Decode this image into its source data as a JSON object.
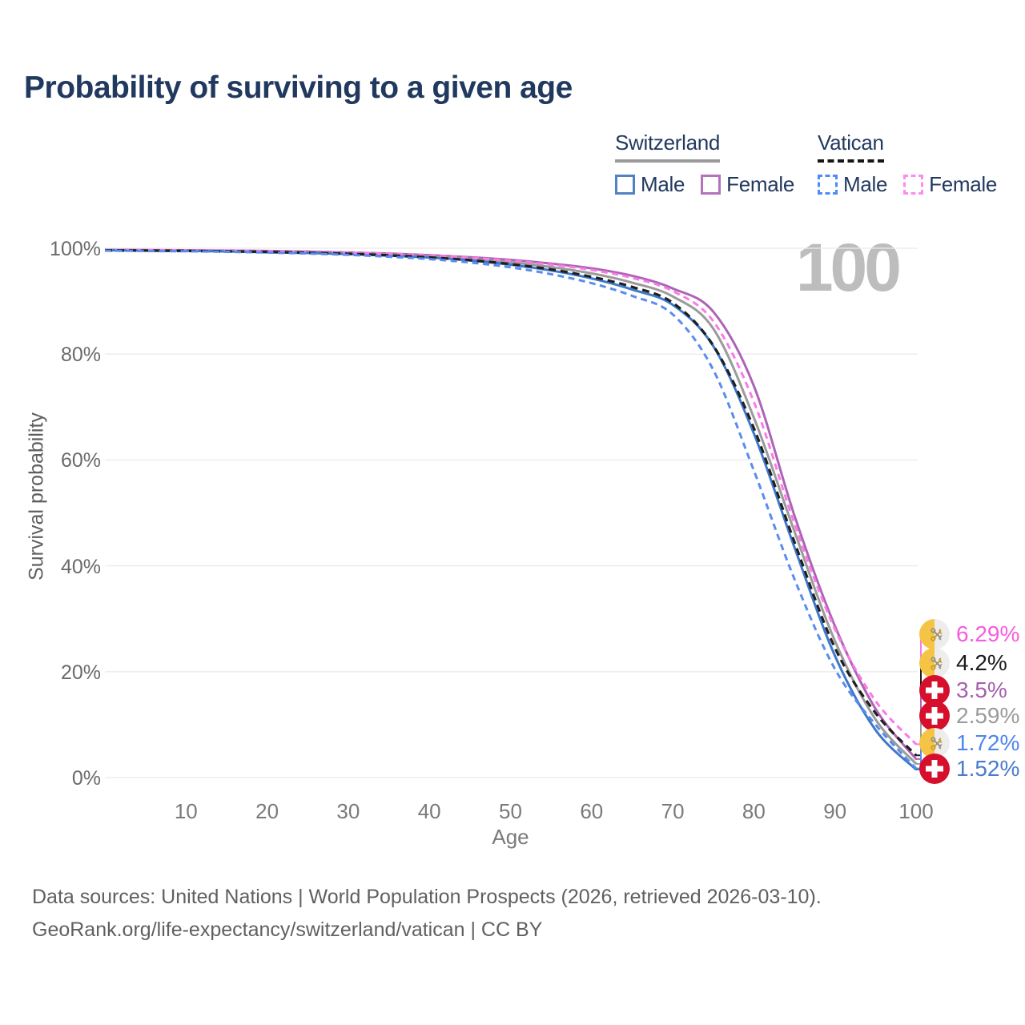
{
  "title": "Probability of surviving to a given age",
  "watermark_age": "100",
  "legend": {
    "groups": [
      {
        "name": "Switzerland",
        "line_style": "solid",
        "underline_color": "#9a9a9a",
        "items": [
          {
            "label": "Male",
            "color": "#5282c6"
          },
          {
            "label": "Female",
            "color": "#b671bd"
          }
        ]
      },
      {
        "name": "Vatican",
        "line_style": "dashed",
        "underline_color": "#161616",
        "items": [
          {
            "label": "Male",
            "color": "#4d8bf5"
          },
          {
            "label": "Female",
            "color": "#fc8df0"
          }
        ]
      }
    ]
  },
  "chart_data": {
    "type": "line",
    "title": "Probability of surviving to a given age",
    "xlabel": "Age",
    "ylabel": "Survival probability",
    "xlim": [
      0,
      100
    ],
    "ylim": [
      0,
      100
    ],
    "grid": "horizontal",
    "x_ticks": [
      10,
      20,
      30,
      40,
      50,
      60,
      70,
      80,
      90,
      100
    ],
    "y_ticks": [
      "0%",
      "20%",
      "40%",
      "60%",
      "80%",
      "100%"
    ],
    "x": [
      0,
      5,
      10,
      15,
      20,
      25,
      30,
      35,
      40,
      45,
      50,
      55,
      60,
      65,
      70,
      75,
      80,
      85,
      90,
      95,
      100
    ],
    "series": [
      {
        "name": "Switzerland Female",
        "country": "Switzerland",
        "sex": "Female",
        "line": "solid",
        "color": "#ab64b6",
        "end_label": "3.5%",
        "end_label_color": "#a55fae",
        "values": [
          99.7,
          99.66,
          99.62,
          99.56,
          99.48,
          99.38,
          99.22,
          99.0,
          98.7,
          98.3,
          97.8,
          97.1,
          96.2,
          94.8,
          92.4,
          88.0,
          74.0,
          49.5,
          28.6,
          13.0,
          3.5
        ]
      },
      {
        "name": "Switzerland",
        "country": "Switzerland",
        "sex": "Both",
        "line": "solid",
        "color": "#9b9b9b",
        "end_label": "2.59%",
        "end_label_color": "#9b9b9b",
        "values": [
          99.65,
          99.6,
          99.56,
          99.48,
          99.36,
          99.24,
          99.06,
          98.8,
          98.48,
          98.0,
          97.35,
          96.45,
          95.25,
          93.5,
          90.9,
          84.8,
          68.0,
          46.5,
          25.8,
          11.0,
          2.59
        ]
      },
      {
        "name": "Switzerland Male",
        "country": "Switzerland",
        "sex": "Male",
        "line": "solid",
        "color": "#3e78c9",
        "end_label": "1.52%",
        "end_label_color": "#4a7ccc",
        "values": [
          99.6,
          99.55,
          99.5,
          99.4,
          99.25,
          99.1,
          98.9,
          98.6,
          98.25,
          97.7,
          96.9,
          95.8,
          94.3,
          92.2,
          89.3,
          81.5,
          65.0,
          43.5,
          23.0,
          9.0,
          1.52
        ]
      },
      {
        "name": "Vatican Female",
        "country": "Vatican",
        "sex": "Female",
        "line": "dashed",
        "color": "#fb7ae6",
        "end_label": "6.29%",
        "end_label_color": "#f65be0",
        "values": [
          99.68,
          99.64,
          99.6,
          99.54,
          99.46,
          99.34,
          99.18,
          98.95,
          98.62,
          98.2,
          97.65,
          96.9,
          95.9,
          94.4,
          91.9,
          86.2,
          71.0,
          48.0,
          28.0,
          14.5,
          6.29
        ]
      },
      {
        "name": "Vatican",
        "country": "Vatican",
        "sex": "Both",
        "line": "dashed",
        "color": "#1f1f1f",
        "end_label": "4.2%",
        "end_label_color": "#1a1a1a",
        "values": [
          99.62,
          99.56,
          99.5,
          99.42,
          99.3,
          99.16,
          98.95,
          98.66,
          98.28,
          97.75,
          97.0,
          96.0,
          94.6,
          92.7,
          89.7,
          81.6,
          66.0,
          44.5,
          24.5,
          12.2,
          4.2
        ]
      },
      {
        "name": "Vatican Male",
        "country": "Vatican",
        "sex": "Male",
        "line": "dashed",
        "color": "#5a8cf0",
        "end_label": "1.72%",
        "end_label_color": "#4e86ec",
        "values": [
          99.55,
          99.48,
          99.42,
          99.32,
          99.18,
          99.0,
          98.75,
          98.4,
          97.95,
          97.3,
          96.4,
          95.1,
          93.4,
          91.0,
          87.5,
          77.0,
          58.0,
          37.5,
          20.5,
          10.0,
          1.72
        ]
      }
    ]
  },
  "source": {
    "line1": "Data sources: United Nations | World Population Prospects (2026, retrieved 2026-03-10).",
    "line2": "GeoRank.org/life-expectancy/switzerland/vatican | CC BY"
  }
}
